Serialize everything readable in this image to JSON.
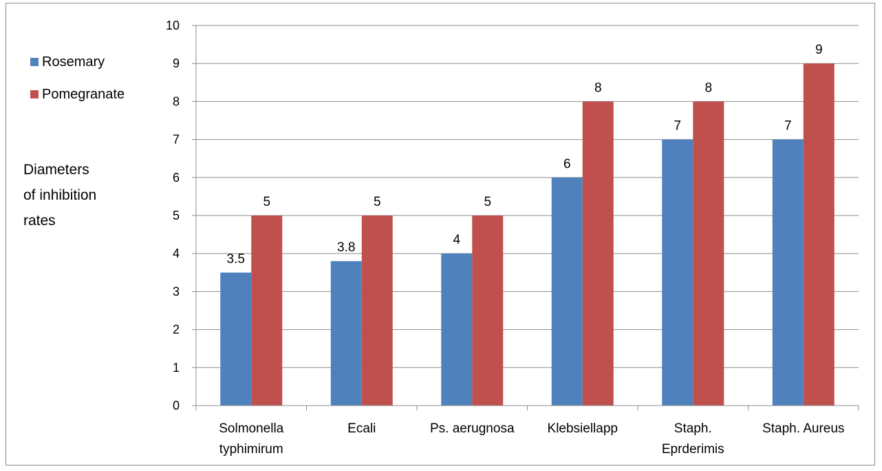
{
  "chart_data": {
    "type": "bar",
    "categories": [
      [
        "Solmonella",
        "typhimirum"
      ],
      [
        "Ecali"
      ],
      [
        "Ps. aerugnosa"
      ],
      [
        "Klebsiellapp"
      ],
      [
        "Staph.",
        "Eprderimis"
      ],
      [
        "Staph. Aureus"
      ]
    ],
    "series": [
      {
        "name": "Rosemary",
        "color": "#4f81bd",
        "values": [
          3.5,
          3.8,
          4,
          6,
          7,
          7
        ]
      },
      {
        "name": "Pomegranate",
        "color": "#c0504d",
        "values": [
          5,
          5,
          5,
          8,
          8,
          9
        ]
      }
    ],
    "ylabel": [
      "Diameters",
      "of inhibition",
      "rates"
    ],
    "ylim": [
      0,
      10
    ],
    "yticks": [
      0,
      1,
      2,
      3,
      4,
      5,
      6,
      7,
      8,
      9,
      10
    ],
    "grid": true,
    "legend_position": "left"
  }
}
